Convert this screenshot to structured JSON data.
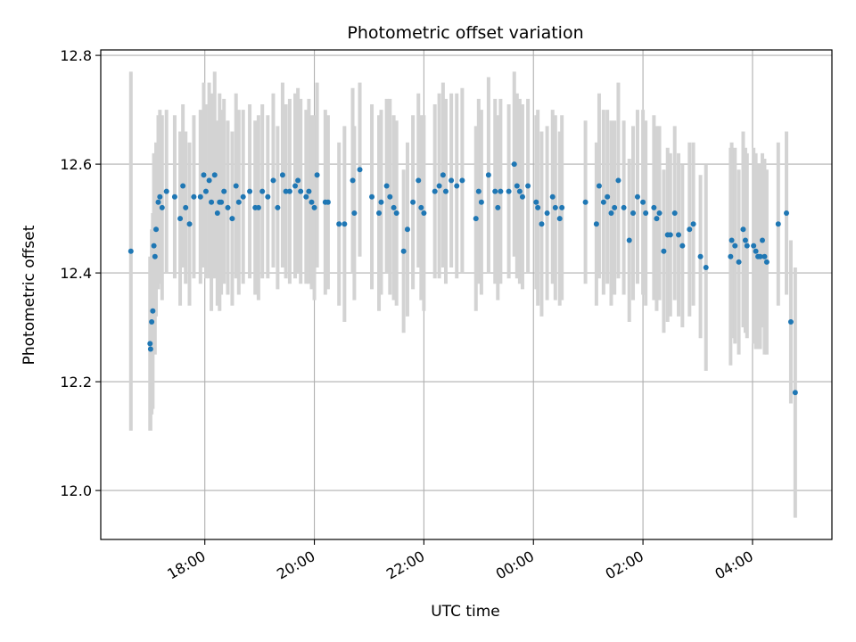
{
  "chart_data": {
    "type": "scatter",
    "title": "Photometric offset variation",
    "xlabel": "UTC time",
    "ylabel": "Photometric offset",
    "x_ticks": [
      "18:00",
      "20:00",
      "22:00",
      "00:00",
      "02:00",
      "04:00"
    ],
    "y_ticks": [
      "12.0",
      "12.2",
      "12.4",
      "12.6",
      "12.8"
    ],
    "x_tick_hours": [
      18,
      20,
      22,
      24,
      26,
      28
    ],
    "y_tick_values": [
      12.0,
      12.2,
      12.4,
      12.6,
      12.8
    ],
    "xlim_hours": [
      16.1,
      29.45
    ],
    "ylim": [
      11.91,
      12.81
    ],
    "grid": true,
    "colors": {
      "points": "#1f77b4",
      "errorbars": "#d3d3d3",
      "grid": "#b0b0b0"
    },
    "series": [
      {
        "points": [
          [
            16.65,
            12.44,
            0.33
          ],
          [
            17.0,
            12.27,
            0.16
          ],
          [
            17.01,
            12.26,
            0.15
          ],
          [
            17.03,
            12.31,
            0.17
          ],
          [
            17.05,
            12.33,
            0.18
          ],
          [
            17.07,
            12.45,
            0.17
          ],
          [
            17.09,
            12.43,
            0.18
          ],
          [
            17.11,
            12.48,
            0.16
          ],
          [
            17.15,
            12.53,
            0.16
          ],
          [
            17.18,
            12.54,
            0.16
          ],
          [
            17.22,
            12.52,
            0.17
          ],
          [
            17.3,
            12.55,
            0.15
          ],
          [
            17.45,
            12.54,
            0.15
          ],
          [
            17.55,
            12.5,
            0.16
          ],
          [
            17.6,
            12.56,
            0.15
          ],
          [
            17.65,
            12.52,
            0.14
          ],
          [
            17.72,
            12.49,
            0.15
          ],
          [
            17.8,
            12.54,
            0.15
          ],
          [
            17.92,
            12.54,
            0.16
          ],
          [
            17.98,
            12.58,
            0.17
          ],
          [
            18.02,
            12.55,
            0.16
          ],
          [
            18.08,
            12.57,
            0.18
          ],
          [
            18.12,
            12.53,
            0.2
          ],
          [
            18.18,
            12.58,
            0.19
          ],
          [
            18.23,
            12.51,
            0.17
          ],
          [
            18.27,
            12.53,
            0.2
          ],
          [
            18.3,
            12.53,
            0.17
          ],
          [
            18.35,
            12.55,
            0.17
          ],
          [
            18.42,
            12.52,
            0.16
          ],
          [
            18.5,
            12.5,
            0.16
          ],
          [
            18.57,
            12.56,
            0.17
          ],
          [
            18.62,
            12.53,
            0.17
          ],
          [
            18.7,
            12.54,
            0.16
          ],
          [
            18.82,
            12.55,
            0.16
          ],
          [
            18.92,
            12.52,
            0.16
          ],
          [
            18.98,
            12.52,
            0.17
          ],
          [
            19.05,
            12.55,
            0.16
          ],
          [
            19.15,
            12.54,
            0.15
          ],
          [
            19.25,
            12.57,
            0.16
          ],
          [
            19.33,
            12.52,
            0.15
          ],
          [
            19.42,
            12.58,
            0.17
          ],
          [
            19.48,
            12.55,
            0.16
          ],
          [
            19.55,
            12.55,
            0.17
          ],
          [
            19.65,
            12.56,
            0.17
          ],
          [
            19.7,
            12.57,
            0.17
          ],
          [
            19.75,
            12.55,
            0.17
          ],
          [
            19.85,
            12.54,
            0.16
          ],
          [
            19.9,
            12.55,
            0.17
          ],
          [
            19.95,
            12.53,
            0.16
          ],
          [
            20.0,
            12.52,
            0.17
          ],
          [
            20.05,
            12.58,
            0.17
          ],
          [
            20.2,
            12.53,
            0.17
          ],
          [
            20.25,
            12.53,
            0.16
          ],
          [
            20.45,
            12.49,
            0.15
          ],
          [
            20.55,
            12.49,
            0.18
          ],
          [
            20.7,
            12.57,
            0.17
          ],
          [
            20.73,
            12.51,
            0.16
          ],
          [
            20.83,
            12.59,
            0.16
          ],
          [
            21.05,
            12.54,
            0.17
          ],
          [
            21.18,
            12.51,
            0.18
          ],
          [
            21.22,
            12.53,
            0.17
          ],
          [
            21.32,
            12.56,
            0.16
          ],
          [
            21.38,
            12.54,
            0.18
          ],
          [
            21.45,
            12.52,
            0.17
          ],
          [
            21.5,
            12.51,
            0.17
          ],
          [
            21.63,
            12.44,
            0.15
          ],
          [
            21.7,
            12.48,
            0.16
          ],
          [
            21.8,
            12.53,
            0.16
          ],
          [
            21.9,
            12.57,
            0.16
          ],
          [
            21.95,
            12.52,
            0.17
          ],
          [
            22.0,
            12.51,
            0.18
          ],
          [
            22.2,
            12.55,
            0.16
          ],
          [
            22.28,
            12.56,
            0.17
          ],
          [
            22.35,
            12.58,
            0.17
          ],
          [
            22.4,
            12.55,
            0.17
          ],
          [
            22.5,
            12.57,
            0.16
          ],
          [
            22.6,
            12.56,
            0.17
          ],
          [
            22.7,
            12.57,
            0.17
          ],
          [
            22.95,
            12.5,
            0.17
          ],
          [
            23.0,
            12.55,
            0.17
          ],
          [
            23.05,
            12.53,
            0.17
          ],
          [
            23.18,
            12.58,
            0.18
          ],
          [
            23.3,
            12.55,
            0.17
          ],
          [
            23.35,
            12.52,
            0.17
          ],
          [
            23.4,
            12.55,
            0.17
          ],
          [
            23.55,
            12.55,
            0.16
          ],
          [
            23.65,
            12.6,
            0.17
          ],
          [
            23.7,
            12.56,
            0.17
          ],
          [
            23.75,
            12.55,
            0.17
          ],
          [
            23.8,
            12.54,
            0.17
          ],
          [
            23.9,
            12.56,
            0.16
          ],
          [
            24.05,
            12.53,
            0.16
          ],
          [
            24.08,
            12.52,
            0.18
          ],
          [
            24.15,
            12.49,
            0.17
          ],
          [
            24.25,
            12.51,
            0.16
          ],
          [
            24.35,
            12.54,
            0.16
          ],
          [
            24.4,
            12.52,
            0.17
          ],
          [
            24.48,
            12.5,
            0.16
          ],
          [
            24.52,
            12.52,
            0.17
          ],
          [
            24.95,
            12.53,
            0.15
          ],
          [
            25.15,
            12.49,
            0.15
          ],
          [
            25.2,
            12.56,
            0.17
          ],
          [
            25.28,
            12.53,
            0.17
          ],
          [
            25.35,
            12.54,
            0.16
          ],
          [
            25.42,
            12.51,
            0.17
          ],
          [
            25.48,
            12.52,
            0.16
          ],
          [
            25.55,
            12.57,
            0.18
          ],
          [
            25.65,
            12.52,
            0.16
          ],
          [
            25.75,
            12.46,
            0.15
          ],
          [
            25.82,
            12.51,
            0.16
          ],
          [
            25.9,
            12.54,
            0.16
          ],
          [
            26.0,
            12.53,
            0.17
          ],
          [
            26.05,
            12.51,
            0.17
          ],
          [
            26.2,
            12.52,
            0.17
          ],
          [
            26.25,
            12.5,
            0.17
          ],
          [
            26.3,
            12.51,
            0.16
          ],
          [
            26.38,
            12.44,
            0.15
          ],
          [
            26.45,
            12.47,
            0.16
          ],
          [
            26.5,
            12.47,
            0.15
          ],
          [
            26.58,
            12.51,
            0.16
          ],
          [
            26.65,
            12.47,
            0.15
          ],
          [
            26.72,
            12.45,
            0.15
          ],
          [
            26.85,
            12.48,
            0.16
          ],
          [
            26.92,
            12.49,
            0.15
          ],
          [
            27.05,
            12.43,
            0.15
          ],
          [
            27.15,
            12.41,
            0.19
          ],
          [
            27.6,
            12.43,
            0.2
          ],
          [
            27.62,
            12.46,
            0.18
          ],
          [
            27.68,
            12.45,
            0.18
          ],
          [
            27.75,
            12.42,
            0.17
          ],
          [
            27.83,
            12.48,
            0.18
          ],
          [
            27.87,
            12.46,
            0.17
          ],
          [
            27.9,
            12.45,
            0.17
          ],
          [
            28.02,
            12.45,
            0.18
          ],
          [
            28.06,
            12.44,
            0.18
          ],
          [
            28.1,
            12.43,
            0.17
          ],
          [
            28.14,
            12.43,
            0.17
          ],
          [
            28.18,
            12.46,
            0.16
          ],
          [
            28.22,
            12.43,
            0.18
          ],
          [
            28.26,
            12.42,
            0.17
          ],
          [
            28.47,
            12.49,
            0.15
          ],
          [
            28.62,
            12.51,
            0.15
          ],
          [
            28.7,
            12.31,
            0.15
          ],
          [
            28.78,
            12.18,
            0.23
          ]
        ]
      }
    ]
  }
}
